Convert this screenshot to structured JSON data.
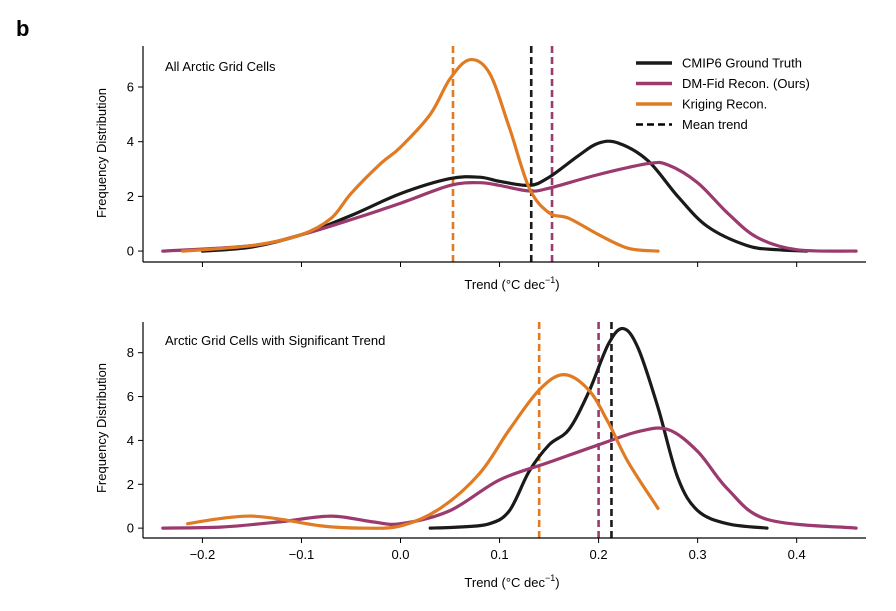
{
  "panel_label": "b",
  "colors": {
    "ground_truth": "#1a1a1a",
    "dm_fid": "#9a3a6e",
    "kriging": "#e07b24",
    "mean_trend": "#000000"
  },
  "legend": {
    "items": [
      {
        "label": "CMIP6 Ground Truth",
        "color": "#1a1a1a",
        "style": "solid"
      },
      {
        "label": "DM-Fid Recon. (Ours)",
        "color": "#9a3a6e",
        "style": "solid"
      },
      {
        "label": "Kriging Recon.",
        "color": "#e07b24",
        "style": "solid"
      },
      {
        "label": "Mean trend",
        "color": "#000000",
        "style": "dashed"
      }
    ]
  },
  "chart_data": [
    {
      "type": "line",
      "title": "All Arctic Grid Cells",
      "xlabel_prefix": "Trend (°C dec",
      "xlabel_exp": "−1",
      "xlabel_suffix": ")",
      "ylabel": "Frequency Distribution",
      "xlim": [
        -0.26,
        0.47
      ],
      "ylim": [
        -0.4,
        7.5
      ],
      "xticks": [
        -0.2,
        -0.1,
        0.0,
        0.1,
        0.2,
        0.3,
        0.4
      ],
      "xtick_labels_shown": false,
      "yticks": [
        0,
        2,
        4,
        6
      ],
      "ytick_labels": [
        "0",
        "2",
        "4",
        "6"
      ],
      "series": [
        {
          "name": "CMIP6 Ground Truth",
          "color": "#1a1a1a",
          "x": [
            -0.2,
            -0.15,
            -0.1,
            -0.05,
            0.0,
            0.05,
            0.08,
            0.1,
            0.13,
            0.15,
            0.18,
            0.2,
            0.22,
            0.25,
            0.28,
            0.31,
            0.35,
            0.38,
            0.41
          ],
          "y": [
            0.0,
            0.15,
            0.6,
            1.3,
            2.1,
            2.65,
            2.7,
            2.55,
            2.4,
            2.7,
            3.5,
            3.95,
            3.95,
            3.3,
            2.0,
            0.9,
            0.2,
            0.05,
            0.0
          ]
        },
        {
          "name": "DM-Fid Recon. (Ours)",
          "color": "#9a3a6e",
          "x": [
            -0.24,
            -0.15,
            -0.1,
            -0.05,
            0.0,
            0.05,
            0.08,
            0.1,
            0.13,
            0.15,
            0.2,
            0.25,
            0.27,
            0.3,
            0.33,
            0.36,
            0.4,
            0.46
          ],
          "y": [
            0.0,
            0.2,
            0.6,
            1.15,
            1.75,
            2.4,
            2.5,
            2.4,
            2.2,
            2.3,
            2.8,
            3.2,
            3.15,
            2.5,
            1.4,
            0.5,
            0.05,
            0.0
          ]
        },
        {
          "name": "Kriging Recon.",
          "color": "#e07b24",
          "x": [
            -0.22,
            -0.15,
            -0.1,
            -0.07,
            -0.05,
            -0.02,
            0.0,
            0.03,
            0.05,
            0.07,
            0.09,
            0.11,
            0.13,
            0.15,
            0.17,
            0.2,
            0.23,
            0.26
          ],
          "y": [
            0.0,
            0.2,
            0.6,
            1.2,
            2.1,
            3.2,
            3.8,
            5.0,
            6.3,
            7.0,
            6.5,
            4.5,
            2.3,
            1.4,
            1.2,
            0.6,
            0.1,
            0.0
          ]
        }
      ],
      "mean_lines": [
        {
          "series": "Kriging Recon.",
          "x": 0.053,
          "color": "#e07b24"
        },
        {
          "series": "CMIP6 Ground Truth",
          "x": 0.132,
          "color": "#1a1a1a"
        },
        {
          "series": "DM-Fid Recon. (Ours)",
          "x": 0.153,
          "color": "#9a3a6e"
        }
      ]
    },
    {
      "type": "line",
      "title": "Arctic Grid Cells with Significant Trend",
      "xlabel_prefix": "Trend (°C dec",
      "xlabel_exp": "−1",
      "xlabel_suffix": ")",
      "ylabel": "Frequency Distribution",
      "xlim": [
        -0.26,
        0.47
      ],
      "ylim": [
        -0.45,
        9.4
      ],
      "xticks": [
        -0.2,
        -0.1,
        0.0,
        0.1,
        0.2,
        0.3,
        0.4
      ],
      "xtick_labels_shown": true,
      "xtick_labels": [
        "−0.2",
        "−0.1",
        "0.0",
        "0.1",
        "0.2",
        "0.3",
        "0.4"
      ],
      "yticks": [
        0,
        2,
        4,
        6,
        8
      ],
      "ytick_labels": [
        "0",
        "2",
        "4",
        "6",
        "8"
      ],
      "series": [
        {
          "name": "CMIP6 Ground Truth",
          "color": "#1a1a1a",
          "x": [
            0.03,
            0.06,
            0.09,
            0.11,
            0.13,
            0.15,
            0.17,
            0.19,
            0.21,
            0.225,
            0.24,
            0.26,
            0.28,
            0.3,
            0.33,
            0.37
          ],
          "y": [
            0.0,
            0.05,
            0.2,
            0.8,
            2.6,
            3.8,
            4.5,
            6.2,
            8.4,
            9.1,
            8.2,
            5.5,
            2.3,
            0.8,
            0.2,
            0.0
          ]
        },
        {
          "name": "DM-Fid Recon. (Ours)",
          "color": "#9a3a6e",
          "x": [
            -0.24,
            -0.18,
            -0.12,
            -0.07,
            -0.03,
            0.0,
            0.05,
            0.1,
            0.15,
            0.2,
            0.24,
            0.27,
            0.3,
            0.33,
            0.37,
            0.46
          ],
          "y": [
            0.0,
            0.05,
            0.3,
            0.55,
            0.3,
            0.2,
            0.8,
            2.2,
            3.0,
            3.8,
            4.4,
            4.5,
            3.5,
            1.8,
            0.4,
            0.0
          ]
        },
        {
          "name": "Kriging Recon.",
          "color": "#e07b24",
          "x": [
            -0.215,
            -0.18,
            -0.15,
            -0.12,
            -0.08,
            -0.04,
            0.0,
            0.04,
            0.08,
            0.11,
            0.14,
            0.165,
            0.19,
            0.21,
            0.23,
            0.26
          ],
          "y": [
            0.2,
            0.45,
            0.55,
            0.4,
            0.1,
            0.0,
            0.1,
            0.9,
            2.5,
            4.5,
            6.3,
            7.0,
            6.3,
            4.8,
            3.0,
            0.9
          ]
        }
      ],
      "mean_lines": [
        {
          "series": "Kriging Recon.",
          "x": 0.14,
          "color": "#e07b24"
        },
        {
          "series": "DM-Fid Recon. (Ours)",
          "x": 0.2,
          "color": "#9a3a6e"
        },
        {
          "series": "CMIP6 Ground Truth",
          "x": 0.213,
          "color": "#1a1a1a"
        }
      ]
    }
  ]
}
